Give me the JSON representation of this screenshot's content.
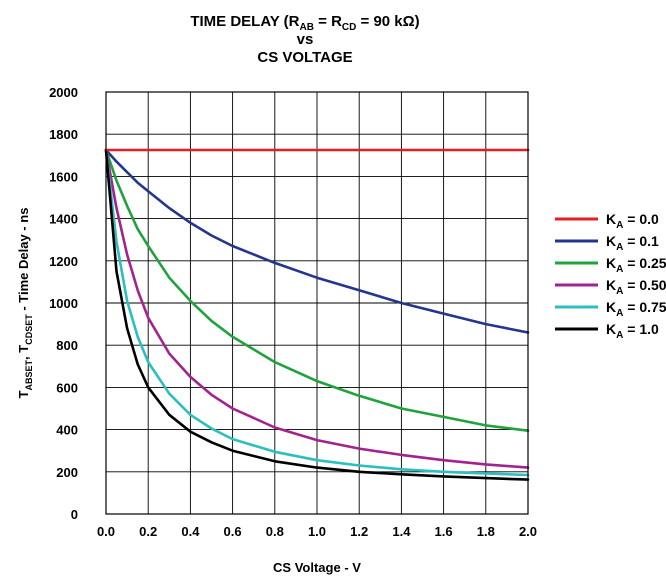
{
  "chart_data": {
    "type": "line",
    "title": {
      "line1_prefix": "TIME DELAY (R",
      "line1_sub1": "AB",
      "line1_mid": " = R",
      "line1_sub2": "CD",
      "line1_suffix": " = 90 kΩ)",
      "line2": "vs",
      "line3": "CS VOLTAGE"
    },
    "xlabel": "CS Voltage - V",
    "ylabel": {
      "p1": "T",
      "s1": "ABSET",
      "p2": ", T",
      "s2": "CDSET",
      "p3": " - Time Delay - ns"
    },
    "xlim": [
      0,
      2.0
    ],
    "ylim": [
      0,
      2000
    ],
    "x_ticks": [
      "0.0",
      "0.2",
      "0.4",
      "0.6",
      "0.8",
      "1.0",
      "1.2",
      "1.4",
      "1.6",
      "1.8",
      "2.0"
    ],
    "y_ticks": [
      "0",
      "200",
      "400",
      "600",
      "800",
      "1000",
      "1200",
      "1400",
      "1600",
      "1800",
      "2000"
    ],
    "grid": true,
    "legend_position": "right",
    "x": [
      0,
      0.05,
      0.1,
      0.15,
      0.2,
      0.3,
      0.4,
      0.5,
      0.6,
      0.8,
      1.0,
      1.2,
      1.4,
      1.6,
      1.8,
      2.0
    ],
    "series": [
      {
        "name": "K",
        "sub": "A",
        "value_label": " = 0.0",
        "color": "#e41e26",
        "values": [
          1725,
          1725,
          1725,
          1725,
          1725,
          1725,
          1725,
          1725,
          1725,
          1725,
          1725,
          1725,
          1725,
          1725,
          1725,
          1725
        ]
      },
      {
        "name": "K",
        "sub": "A",
        "value_label": " = 0.1",
        "color": "#23368f",
        "values": [
          1725,
          1670,
          1620,
          1570,
          1530,
          1450,
          1380,
          1320,
          1270,
          1190,
          1120,
          1060,
          1000,
          950,
          900,
          860
        ]
      },
      {
        "name": "K",
        "sub": "A",
        "value_label": " = 0.25",
        "color": "#1fa33a",
        "values": [
          1725,
          1580,
          1460,
          1350,
          1270,
          1120,
          1010,
          915,
          840,
          720,
          630,
          560,
          500,
          460,
          420,
          395
        ]
      },
      {
        "name": "K",
        "sub": "A",
        "value_label": " = 0.50",
        "color": "#a3238e",
        "values": [
          1725,
          1450,
          1230,
          1060,
          930,
          760,
          650,
          565,
          500,
          410,
          350,
          310,
          280,
          255,
          235,
          220
        ]
      },
      {
        "name": "K",
        "sub": "A",
        "value_label": " = 0.75",
        "color": "#2bbfc0",
        "values": [
          1725,
          1290,
          1010,
          840,
          720,
          570,
          470,
          405,
          355,
          295,
          255,
          230,
          212,
          200,
          192,
          185
        ]
      },
      {
        "name": "K",
        "sub": "A",
        "value_label": " = 1.0",
        "color": "#000000",
        "values": [
          1725,
          1150,
          880,
          710,
          600,
          470,
          390,
          340,
          300,
          250,
          220,
          200,
          188,
          178,
          170,
          163
        ]
      }
    ]
  }
}
